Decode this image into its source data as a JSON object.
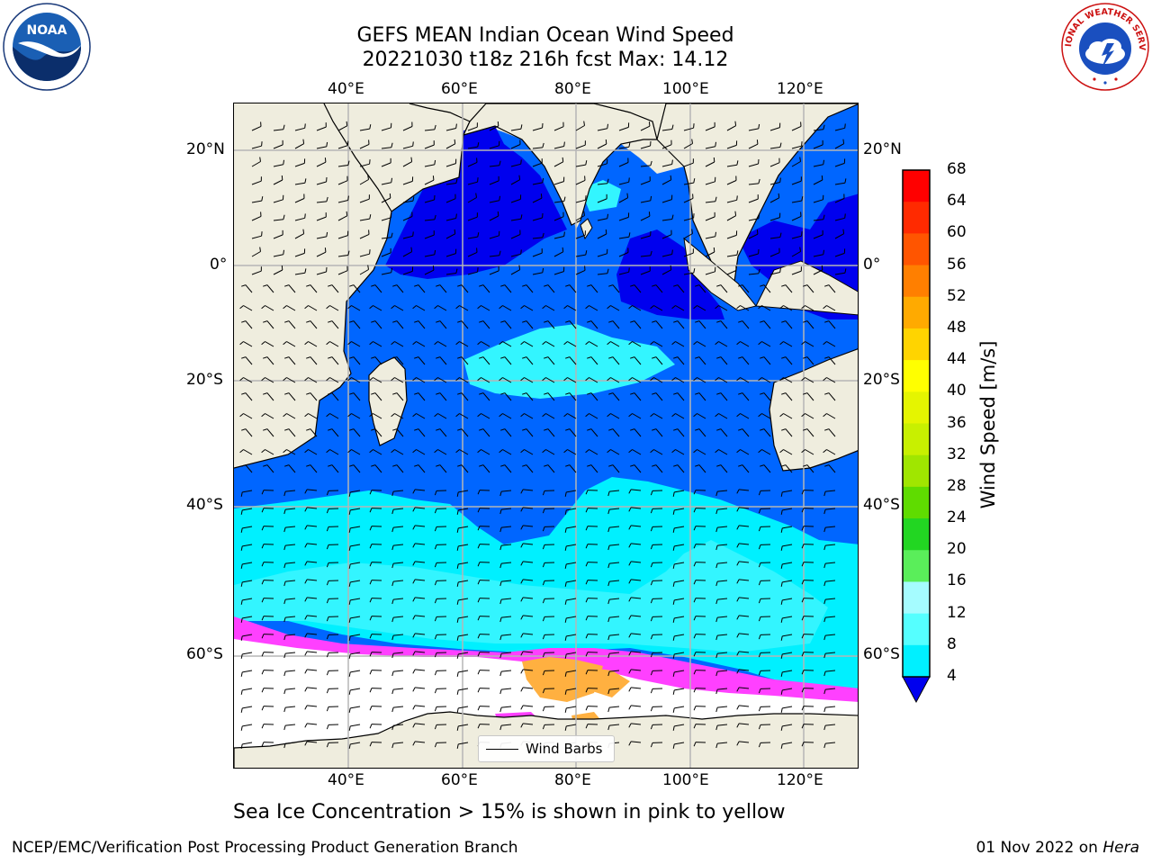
{
  "title": {
    "line1": "GEFS MEAN Indian Ocean Wind Speed",
    "line2": "20221030 t18z 216h fcst   Max: 14.12"
  },
  "map": {
    "lon_ticks": [
      "40°E",
      "60°E",
      "80°E",
      "100°E",
      "120°E"
    ],
    "lat_ticks": [
      "20°N",
      "0°",
      "20°S",
      "40°S",
      "60°S"
    ],
    "colors": {
      "land": "#efedde",
      "ice_free_white": "#ffffff",
      "speed_0_4": "#0000ee",
      "speed_4_8": "#0066ff",
      "speed_8_12": "#00ffff",
      "speed_12_16": "#33f5ff",
      "sea_ice_pink": "#ff40ff",
      "sea_ice_orange": "#ffb040"
    }
  },
  "colorbar": {
    "labels": [
      "68",
      "64",
      "60",
      "56",
      "52",
      "48",
      "44",
      "40",
      "36",
      "32",
      "28",
      "24",
      "20",
      "16",
      "12",
      "8",
      "4"
    ],
    "colors": [
      "#ff0000",
      "#ff2a00",
      "#ff5500",
      "#ff7f00",
      "#ffaa00",
      "#ffd400",
      "#ffff00",
      "#e5f500",
      "#c8f000",
      "#a0e600",
      "#5fdc00",
      "#22d622",
      "#5aee5a",
      "#a5fcff",
      "#55ffff",
      "#00f0ff",
      "#0066ff"
    ],
    "under_color": "#0000ee",
    "title": "Wind Speed [m/s]"
  },
  "legend": {
    "label": "Wind Barbs"
  },
  "caption": "Sea Ice Concentration > 15% is shown in pink to yellow",
  "footer": {
    "left": "NCEP/EMC/Verification Post Processing Product Generation Branch",
    "right_prefix": "01 Nov 2022 on ",
    "right_host": "Hera"
  },
  "logos": {
    "noaa": "NOAA",
    "nws": "NATIONAL WEATHER SERVICE"
  }
}
